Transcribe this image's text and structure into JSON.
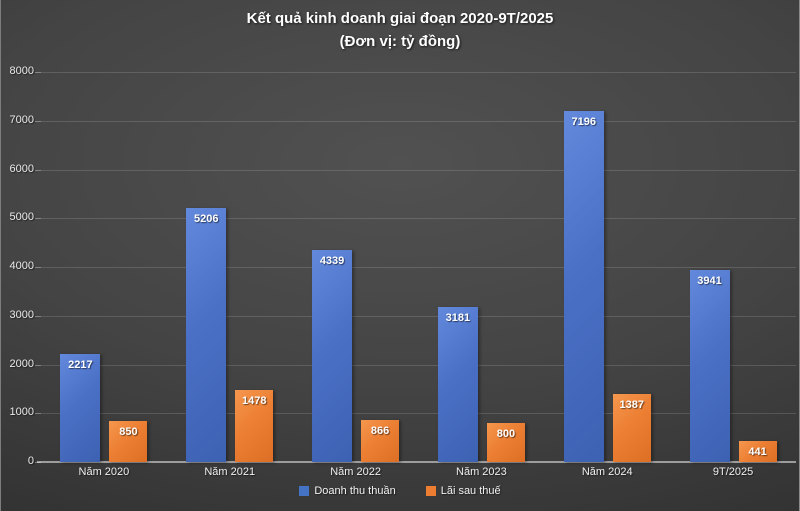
{
  "title": {
    "line1": "Kết quả kinh doanh giai đoạn 2020-9T/2025",
    "line2": "(Đơn vị: tỷ đồng)"
  },
  "colors": {
    "series_revenue": "#4472c4",
    "series_profit": "#ed7d31",
    "background_center": "#515151",
    "background_edge": "#2b2b2b",
    "gridline": "#5f5f5f",
    "axis_line": "#9d9d9d",
    "text": "#ffffff"
  },
  "chart_data": {
    "type": "bar",
    "title": "Kết quả kinh doanh giai đoạn 2020-9T/2025",
    "subtitle": "(Đơn vị: tỷ đồng)",
    "categories": [
      "Năm 2020",
      "Năm 2021",
      "Năm 2022",
      "Năm 2023",
      "Năm 2024",
      "9T/2025"
    ],
    "series": [
      {
        "name": "Doanh thu thuần",
        "color": "#4472c4",
        "values": [
          2217,
          5206,
          4339,
          3181,
          7196,
          3941
        ]
      },
      {
        "name": "Lãi sau thuế",
        "color": "#ed7d31",
        "values": [
          850,
          1478,
          866,
          800,
          1387,
          441
        ]
      }
    ],
    "xlabel": "",
    "ylabel": "",
    "ylim": [
      0,
      8000
    ],
    "yticks": [
      0,
      1000,
      2000,
      3000,
      4000,
      5000,
      6000,
      7000,
      8000
    ],
    "grid": true,
    "data_labels": true,
    "legend_position": "bottom"
  }
}
